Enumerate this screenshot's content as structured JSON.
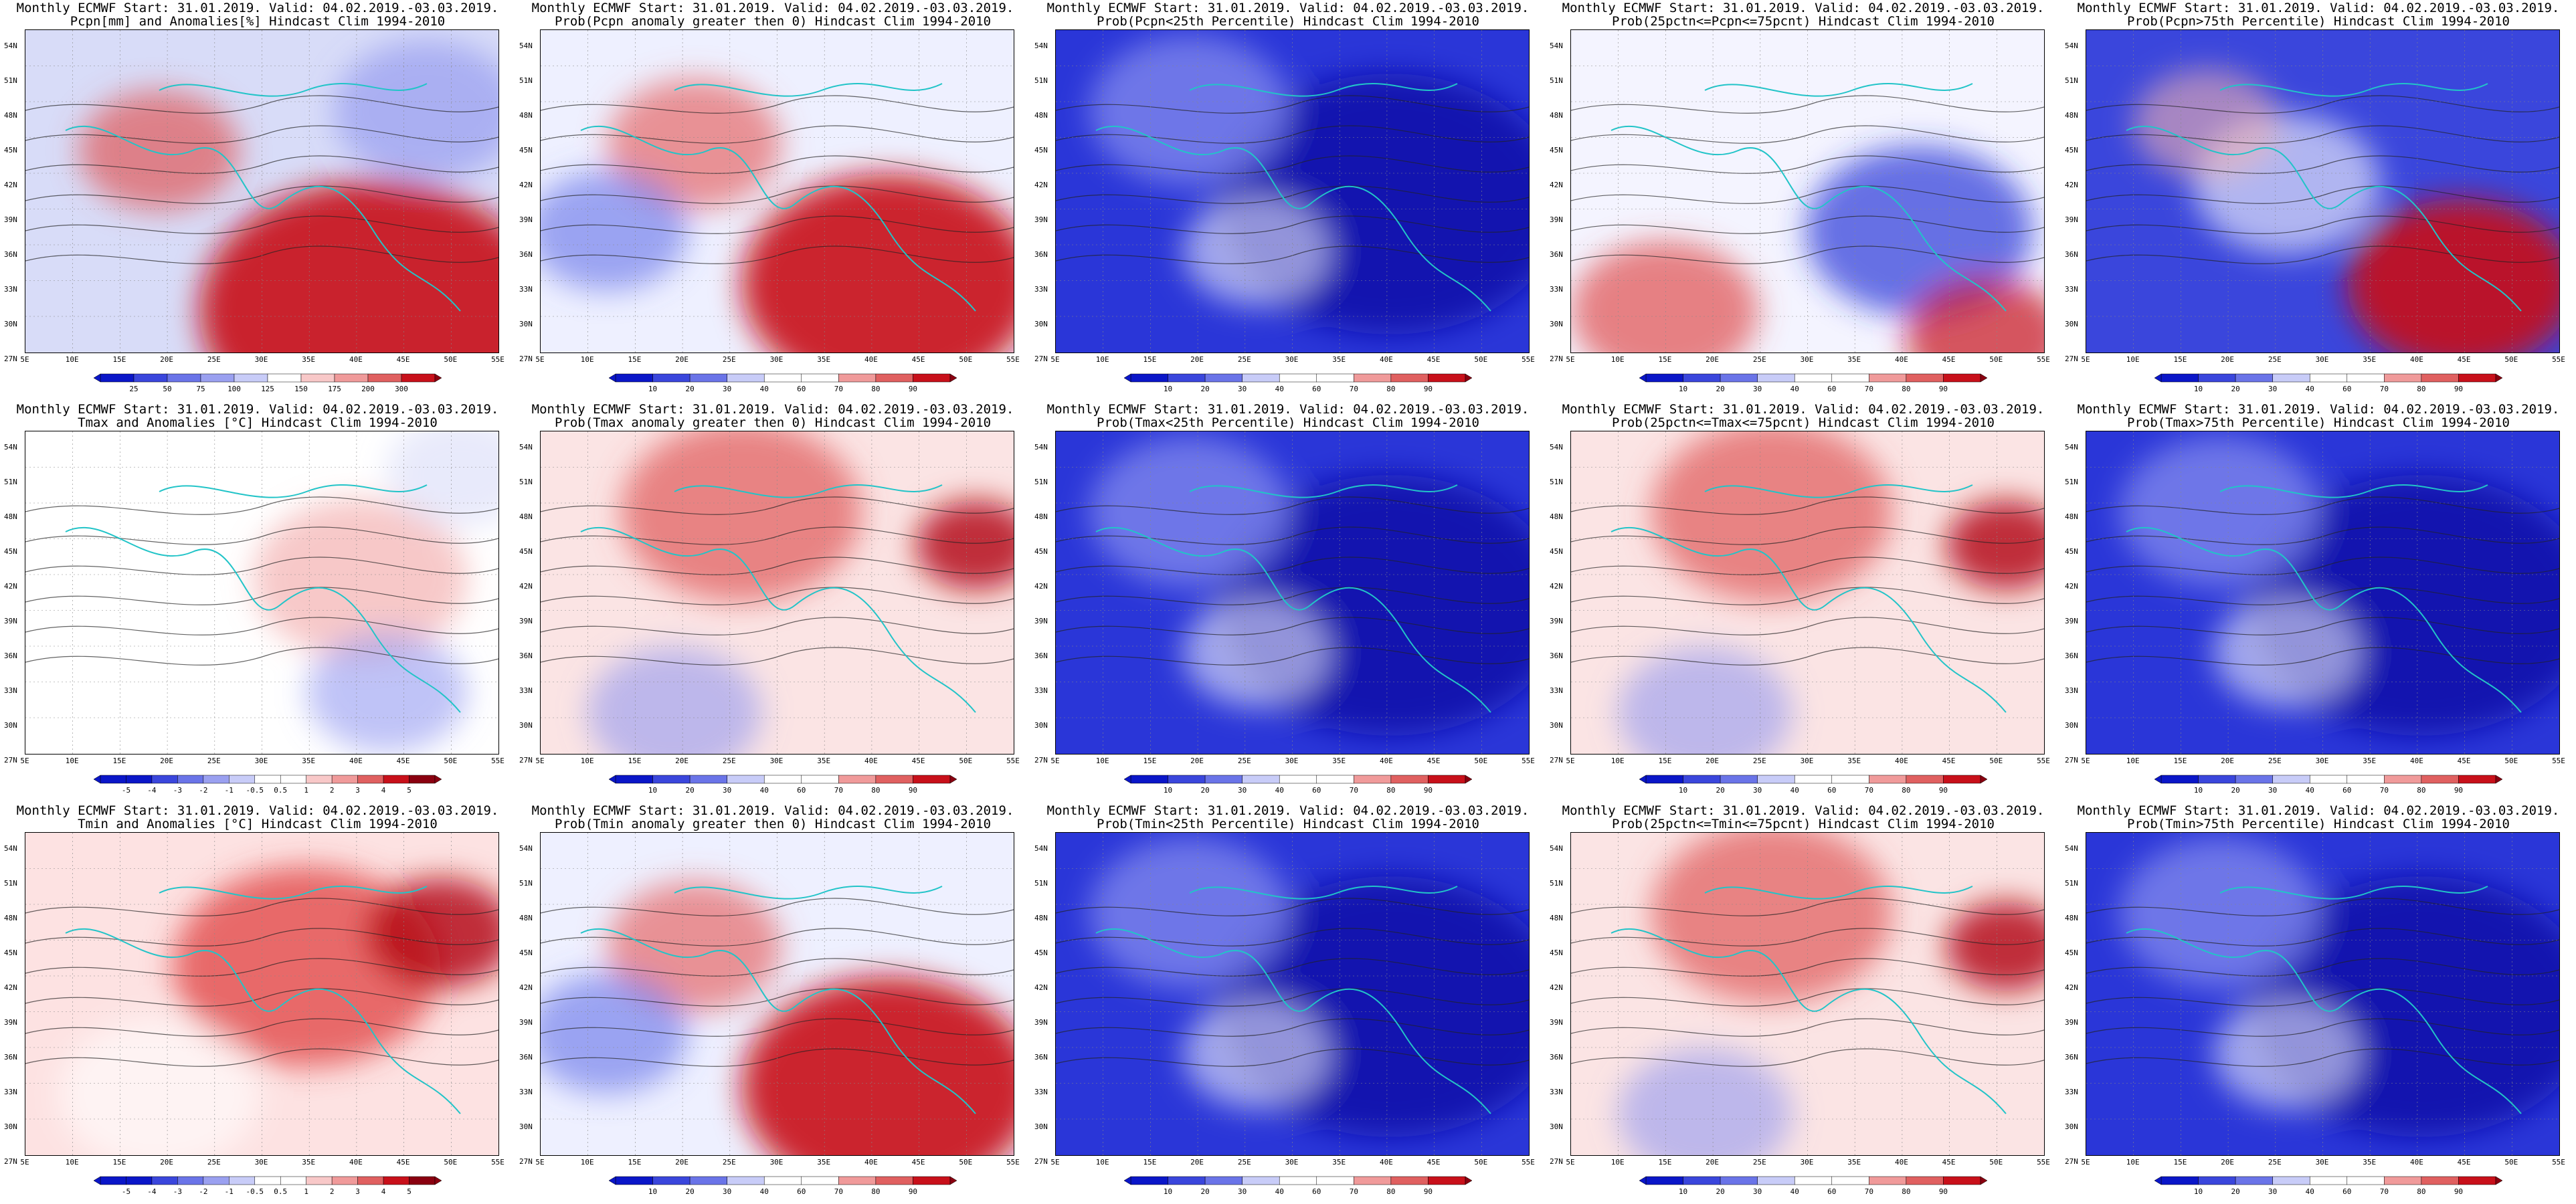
{
  "header": {
    "line1": "Monthly ECMWF Start: 31.01.2019. Valid: 04.02.2019.-03.03.2019."
  },
  "axes": {
    "lat_labels": [
      "54N",
      "51N",
      "48N",
      "45N",
      "42N",
      "39N",
      "36N",
      "33N",
      "30N",
      "27N"
    ],
    "lon_labels": [
      "5E",
      "10E",
      "15E",
      "20E",
      "25E",
      "30E",
      "35E",
      "40E",
      "45E",
      "50E",
      "55E"
    ]
  },
  "colors": {
    "accent_red": "#c8101a",
    "accent_blue": "#0a16c8",
    "coast": "#22c4c8",
    "contour": "#222222"
  },
  "panels": [
    {
      "title2": "Pcpn[mm] and Anomalies[%] Hindcast Clim 1994-2010",
      "kind": "anom_pcp",
      "scale": [
        "25",
        "50",
        "75",
        "100",
        "125",
        "150",
        "175",
        "200",
        "300"
      ]
    },
    {
      "title2": "Prob(Pcpn anomaly greater then 0) Hindcast Clim 1994-2010",
      "kind": "prob_red",
      "scale": [
        "10",
        "20",
        "30",
        "40",
        "60",
        "70",
        "80",
        "90"
      ]
    },
    {
      "title2": "Prob(Pcpn<25th Percentile) Hindcast Clim 1994-2010",
      "kind": "prob_blue_strong",
      "scale": [
        "10",
        "20",
        "30",
        "40",
        "60",
        "70",
        "80",
        "90"
      ]
    },
    {
      "title2": "Prob(25pctn<=Pcpn<=75pcnt) Hindcast Clim 1994-2010",
      "kind": "prob_neutral",
      "scale": [
        "10",
        "20",
        "30",
        "40",
        "60",
        "70",
        "80",
        "90"
      ]
    },
    {
      "title2": "Prob(Pcpn>75th Percentile) Hindcast Clim 1994-2010",
      "kind": "prob_mixed",
      "scale": [
        "10",
        "20",
        "30",
        "40",
        "60",
        "70",
        "80",
        "90"
      ]
    },
    {
      "title2": "Tmax and Anomalies [°C] Hindcast Clim 1994-2010",
      "kind": "anom_t",
      "scale": [
        "-5",
        "-4",
        "-3",
        "-2",
        "-1",
        "-0.5",
        "0.5",
        "1",
        "2",
        "3",
        "4",
        "5"
      ]
    },
    {
      "title2": "Prob(Tmax anomaly greater then 0) Hindcast Clim 1994-2010",
      "kind": "prob_red_light",
      "scale": [
        "10",
        "20",
        "30",
        "40",
        "60",
        "70",
        "80",
        "90"
      ]
    },
    {
      "title2": "Prob(Tmax<25th Percentile) Hindcast Clim 1994-2010",
      "kind": "prob_blue_strong",
      "scale": [
        "10",
        "20",
        "30",
        "40",
        "60",
        "70",
        "80",
        "90"
      ]
    },
    {
      "title2": "Prob(25pctn<=Tmax<=75pcnt) Hindcast Clim 1994-2010",
      "kind": "prob_red_light",
      "scale": [
        "10",
        "20",
        "30",
        "40",
        "60",
        "70",
        "80",
        "90"
      ]
    },
    {
      "title2": "Prob(Tmax>75th Percentile) Hindcast Clim 1994-2010",
      "kind": "prob_blue_strong",
      "scale": [
        "10",
        "20",
        "30",
        "40",
        "60",
        "70",
        "80",
        "90"
      ]
    },
    {
      "title2": "Tmin and Anomalies [°C] Hindcast Clim 1994-2010",
      "kind": "anom_t_red",
      "scale": [
        "-5",
        "-4",
        "-3",
        "-2",
        "-1",
        "-0.5",
        "0.5",
        "1",
        "2",
        "3",
        "4",
        "5"
      ]
    },
    {
      "title2": "Prob(Tmin anomaly greater then 0) Hindcast Clim 1994-2010",
      "kind": "prob_red",
      "scale": [
        "10",
        "20",
        "30",
        "40",
        "60",
        "70",
        "80",
        "90"
      ]
    },
    {
      "title2": "Prob(Tmin<25th Percentile) Hindcast Clim 1994-2010",
      "kind": "prob_blue_strong",
      "scale": [
        "10",
        "20",
        "30",
        "40",
        "60",
        "70",
        "80",
        "90"
      ]
    },
    {
      "title2": "Prob(25pctn<=Tmin<=75pcnt) Hindcast Clim 1994-2010",
      "kind": "prob_red_light",
      "scale": [
        "10",
        "20",
        "30",
        "40",
        "60",
        "70",
        "80",
        "90"
      ]
    },
    {
      "title2": "Prob(Tmin>75th Percentile) Hindcast Clim 1994-2010",
      "kind": "prob_blue_strong",
      "scale": [
        "10",
        "20",
        "30",
        "40",
        "60",
        "70",
        "80",
        "90"
      ]
    }
  ]
}
